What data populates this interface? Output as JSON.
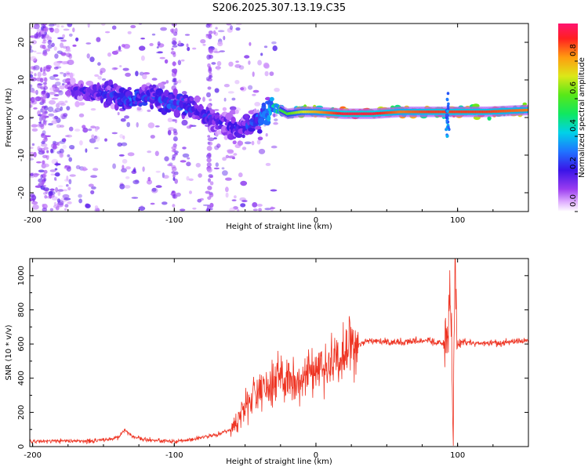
{
  "title": "S206.2025.307.13.19.C35",
  "chart_data": [
    {
      "type": "heatmap",
      "name": "spectrogram",
      "xlabel": "Height of straight line (km)",
      "ylabel": "Frequency (Hz)",
      "xlim": [
        -202,
        150
      ],
      "ylim": [
        -25,
        25
      ],
      "xticks": [
        -200,
        -100,
        0,
        100
      ],
      "yticks": [
        -20,
        -10,
        0,
        10,
        20
      ],
      "colorbar": {
        "label": "Normalized spectral amplitude",
        "range": [
          0,
          1
        ],
        "ticks": [
          0.0,
          0.2,
          0.4,
          0.6,
          0.8
        ],
        "tick_labels": [
          "0.0",
          "0.2",
          "0.4",
          "0.6",
          "0.8"
        ]
      },
      "ridge": {
        "description": "dominant frequency vs height",
        "height_km": [
          -175,
          -160,
          -145,
          -130,
          -115,
          -100,
          -85,
          -70,
          -55,
          -45,
          -35,
          -30,
          -20,
          -10,
          0,
          20,
          40,
          60,
          80,
          90,
          100,
          120,
          150
        ],
        "frequency_hz": [
          7,
          7,
          6,
          5,
          5,
          4,
          2,
          -1,
          -3,
          -2,
          1,
          3,
          1,
          1.5,
          1.5,
          1,
          1,
          1.5,
          1.5,
          1.5,
          1.5,
          1.5,
          2
        ],
        "amplitude": [
          0.2,
          0.25,
          0.3,
          0.35,
          0.3,
          0.35,
          0.3,
          0.25,
          0.25,
          0.3,
          0.4,
          0.5,
          0.6,
          0.7,
          0.8,
          0.95,
          0.95,
          0.85,
          0.9,
          0.9,
          0.9,
          0.9,
          0.85
        ]
      }
    },
    {
      "type": "line",
      "name": "snr",
      "xlabel": "Height of straight line (km)",
      "ylabel": "SNR (10 * v/v)",
      "xlim": [
        -202,
        150
      ],
      "ylim": [
        0,
        1100
      ],
      "xticks": [
        -200,
        -100,
        0,
        100
      ],
      "yticks": [
        0,
        200,
        400,
        600,
        800,
        1000
      ],
      "series": [
        {
          "name": "SNR",
          "color": "#ee3322",
          "x": [
            -200,
            -180,
            -160,
            -140,
            -135,
            -130,
            -120,
            -100,
            -90,
            -80,
            -70,
            -60,
            -55,
            -50,
            -45,
            -40,
            -35,
            -30,
            -25,
            -20,
            -15,
            -10,
            -5,
            0,
            10,
            20,
            30,
            40,
            60,
            80,
            90,
            95,
            97,
            98,
            100,
            105,
            120,
            150
          ],
          "y": [
            30,
            35,
            32,
            50,
            100,
            60,
            40,
            30,
            40,
            55,
            70,
            100,
            150,
            220,
            300,
            320,
            350,
            380,
            420,
            400,
            360,
            380,
            420,
            440,
            490,
            560,
            600,
            620,
            610,
            620,
            600,
            800,
            100,
            1050,
            600,
            610,
            600,
            620
          ]
        }
      ]
    }
  ]
}
